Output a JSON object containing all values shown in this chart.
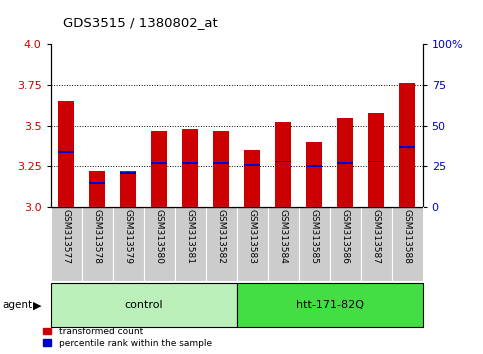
{
  "title": "GDS3515 / 1380802_at",
  "samples": [
    "GSM313577",
    "GSM313578",
    "GSM313579",
    "GSM313580",
    "GSM313581",
    "GSM313582",
    "GSM313583",
    "GSM313584",
    "GSM313585",
    "GSM313586",
    "GSM313587",
    "GSM313588"
  ],
  "transformed_count": [
    3.65,
    3.22,
    3.22,
    3.47,
    3.48,
    3.47,
    3.35,
    3.52,
    3.4,
    3.55,
    3.58,
    3.76
  ],
  "percentile_rank": [
    3.34,
    3.15,
    3.21,
    3.27,
    3.27,
    3.27,
    3.26,
    3.28,
    3.25,
    3.27,
    3.28,
    3.37
  ],
  "ylim": [
    3.0,
    4.0
  ],
  "y2lim": [
    0,
    100
  ],
  "yticks": [
    3.0,
    3.25,
    3.5,
    3.75,
    4.0
  ],
  "y2ticks": [
    0,
    25,
    50,
    75,
    100
  ],
  "groups": [
    {
      "label": "control",
      "start": 0,
      "end": 6,
      "color": "#bbf0bb"
    },
    {
      "label": "htt-171-82Q",
      "start": 6,
      "end": 12,
      "color": "#44dd44"
    }
  ],
  "group_row_label": "agent",
  "bar_color_red": "#cc0000",
  "bar_color_blue": "#0000cc",
  "tick_label_color_left": "#cc0000",
  "tick_label_color_right": "#0000cc",
  "bar_width": 0.5,
  "legend_red": "transformed count",
  "legend_blue": "percentile rank within the sample",
  "background_color": "#ffffff",
  "xlabel_area_color": "#cccccc",
  "blue_bar_thickness": 0.012
}
